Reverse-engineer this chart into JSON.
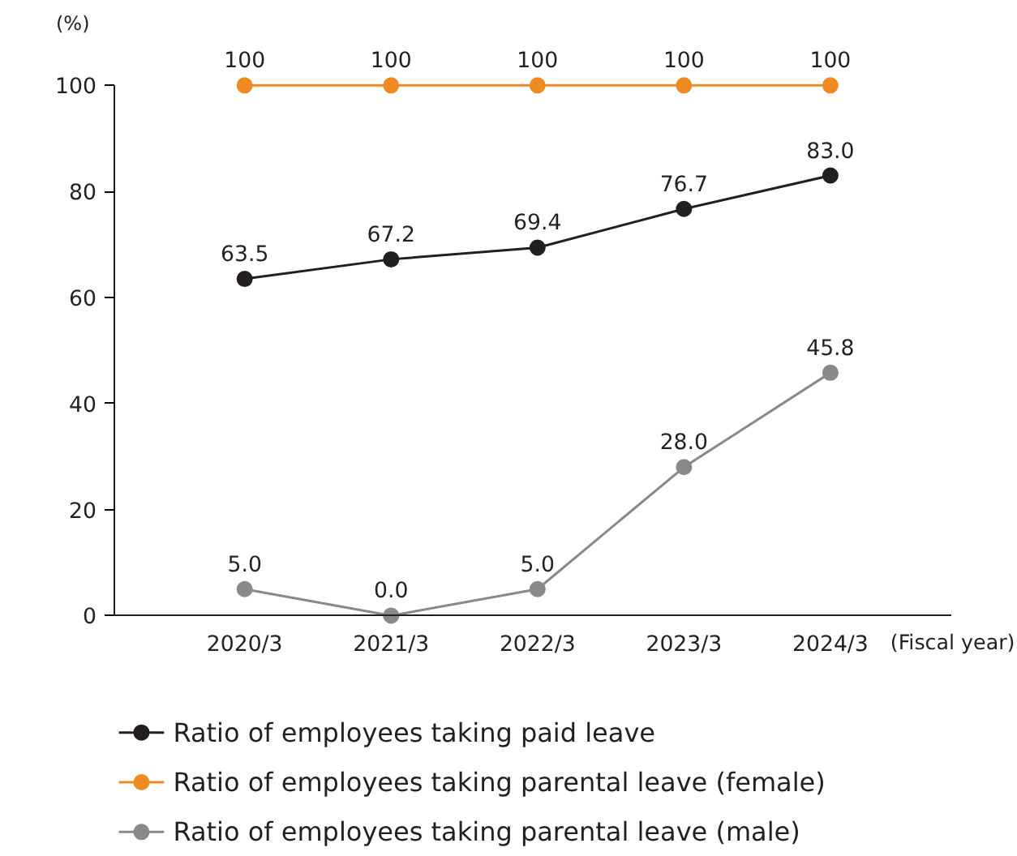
{
  "chart_data": {
    "type": "line",
    "ylabel": "(%)",
    "xlabel": "(Fiscal year)",
    "categories": [
      "2020/3",
      "2021/3",
      "2022/3",
      "2023/3",
      "2024/3"
    ],
    "series": [
      {
        "name": "Ratio of employees taking paid leave",
        "color": "#231f20",
        "values": [
          63.5,
          67.2,
          69.4,
          76.7,
          83.0
        ],
        "value_labels": [
          "63.5",
          "67.2",
          "69.4",
          "76.7",
          "83.0"
        ]
      },
      {
        "name": "Ratio of employees taking parental leave (female)",
        "color": "#f18a21",
        "values": [
          100,
          100,
          100,
          100,
          100
        ],
        "value_labels": [
          "100",
          "100",
          "100",
          "100",
          "100"
        ]
      },
      {
        "name": "Ratio of employees taking parental leave (male)",
        "color": "#898989",
        "values": [
          5.0,
          0.0,
          5.0,
          28.0,
          45.8
        ],
        "value_labels": [
          "5.0",
          "0.0",
          "5.0",
          "28.0",
          "45.8"
        ]
      }
    ],
    "ylim": [
      0,
      100
    ],
    "yticks": [
      0,
      20,
      40,
      60,
      80,
      100
    ],
    "grid": false,
    "legend": "bottom",
    "marker": "circle",
    "line_style": "solid"
  }
}
